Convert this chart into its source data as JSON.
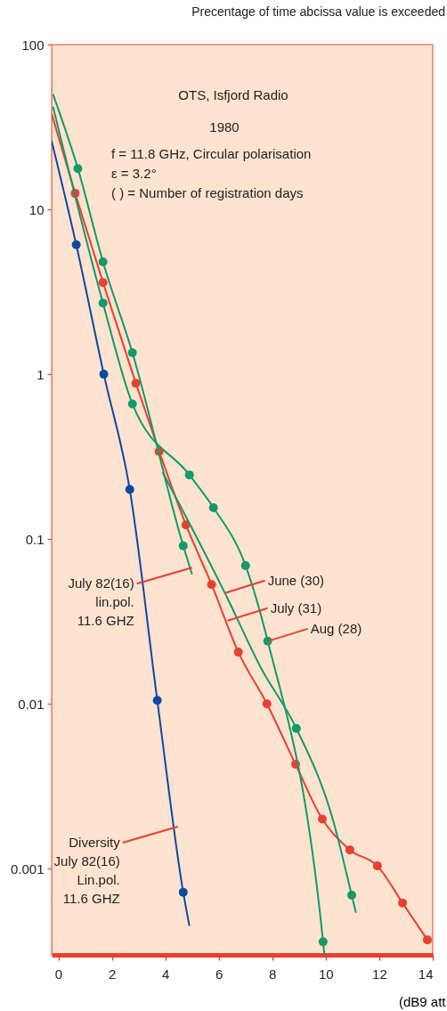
{
  "chart_data": {
    "type": "line",
    "ylabel": "Precentage of time abcissa value is exceeded",
    "xlabel": "(dB9 att",
    "xlim": [
      -0.25,
      14
    ],
    "ylim": [
      0.0003,
      100
    ],
    "log": "y",
    "grid": false,
    "xticks": [
      0,
      2,
      4,
      6,
      8,
      10,
      12,
      14
    ],
    "yticks": [
      100,
      10,
      1,
      0.1,
      0.01,
      0.001
    ],
    "series": [
      {
        "marker": "none",
        "color": "#0b4aa0",
        "x": [
          -0.25,
          0.67,
          1.7,
          2.67,
          3.7,
          4.67,
          4.9
        ],
        "values": [
          26,
          6.1,
          1.0,
          0.2,
          0.0105,
          0.00072,
          0.00045
        ]
      },
      {
        "type": "scatter",
        "marker": "circle",
        "color": "#0b4aa0",
        "x": [
          0.67,
          1.7,
          2.67,
          3.7,
          4.67
        ],
        "values": [
          6.1,
          1.0,
          0.2,
          0.0105,
          0.00072
        ]
      },
      {
        "marker": "none",
        "color": "#e8402f",
        "x": [
          -0.25,
          0.63,
          1.67,
          2.9,
          3.77,
          4.77,
          5.73,
          6.73,
          7.8,
          8.87,
          9.87,
          10.9,
          11.93,
          12.87,
          13.8
        ],
        "values": [
          38,
          12.5,
          3.6,
          0.88,
          0.34,
          0.122,
          0.053,
          0.0206,
          0.01,
          0.0043,
          0.002,
          0.0013,
          0.00104,
          0.00062,
          0.00037
        ]
      },
      {
        "type": "scatter",
        "marker": "circle",
        "color": "#e8402f",
        "x": [
          0.63,
          1.67,
          2.9,
          3.77,
          4.77,
          5.73,
          6.73,
          7.8,
          8.87,
          9.87,
          10.9,
          11.93,
          12.87,
          13.8
        ],
        "values": [
          12.5,
          3.6,
          0.88,
          0.34,
          0.122,
          0.053,
          0.0206,
          0.01,
          0.0043,
          0.002,
          0.0013,
          0.00104,
          0.00062,
          0.00037
        ]
      },
      {
        "marker": "none",
        "color": "#129a6a",
        "x": [
          -0.2,
          0.73,
          1.67,
          2.77,
          4.67,
          5.0
        ],
        "values": [
          50,
          17.7,
          4.8,
          1.35,
          0.091,
          0.061
        ]
      },
      {
        "type": "scatter",
        "marker": "circle",
        "color": "#129a6a",
        "x": [
          0.73,
          1.67,
          2.77,
          4.67
        ],
        "values": [
          17.7,
          4.8,
          1.35,
          0.091
        ]
      },
      {
        "marker": "none",
        "color": "#129a6a",
        "x": [
          -0.2,
          1.67,
          2.77,
          4.9,
          5.8,
          7.0,
          7.83,
          9.9,
          9.95
        ],
        "values": [
          42,
          2.7,
          0.66,
          0.245,
          0.155,
          0.069,
          0.024,
          0.00036,
          0.0003
        ]
      },
      {
        "type": "scatter",
        "marker": "circle",
        "color": "#129a6a",
        "x": [
          1.67,
          2.77,
          4.9,
          5.8,
          7.0,
          7.83,
          9.9
        ],
        "values": [
          2.7,
          0.66,
          0.245,
          0.155,
          0.069,
          0.024,
          0.00036
        ]
      },
      {
        "marker": "none",
        "color": "#129a6a",
        "x": [
          3.9,
          6.23,
          7.57,
          8.9,
          10.3,
          10.97,
          11.13
        ],
        "values": [
          0.254,
          0.047,
          0.0166,
          0.0071,
          0.0019,
          0.00069,
          0.00054
        ]
      },
      {
        "type": "scatter",
        "marker": "circle",
        "color": "#129a6a",
        "x": [
          8.9,
          10.97
        ],
        "values": [
          0.0071,
          0.00069
        ]
      }
    ],
    "annotations": [
      "OTS, Isfjord Radio",
      "1980",
      "f  = 11.8 GHz, Circular polarisation",
      "ε  = 3.2°",
      "( ) =  Number of registration days",
      {
        "text": "July 82(16)\nlin.pol.\n11.6 GHZ",
        "x": 5.0,
        "y": 0.067
      },
      {
        "text": "June (30)",
        "x": 6.23,
        "y": 0.047
      },
      {
        "text": "July (31)",
        "x": 6.33,
        "y": 0.032
      },
      {
        "text": "Aug (28)",
        "x": 7.83,
        "y": 0.024
      },
      {
        "text": "Diversity\nJuly 82(16)\nLin.pol.\n11.6 GHZ",
        "x": 4.47,
        "y": 0.0018
      }
    ]
  }
}
